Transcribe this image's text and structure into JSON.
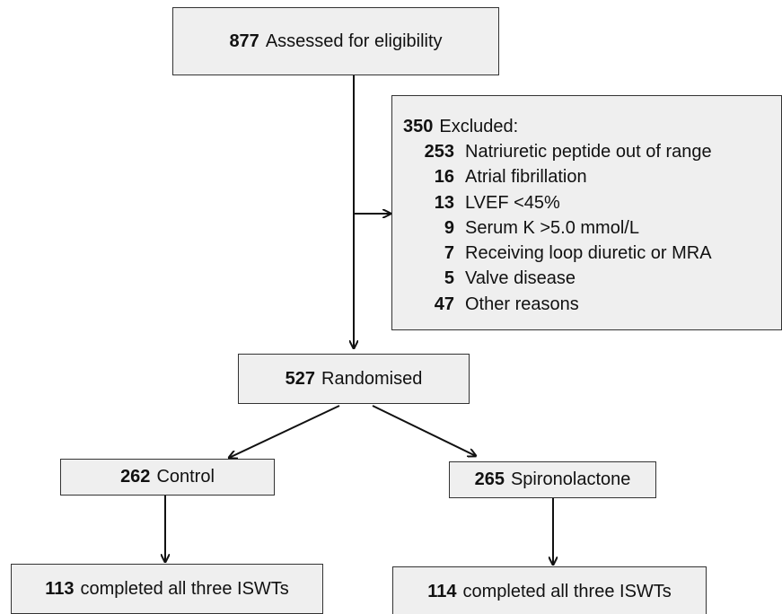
{
  "nodes": {
    "assessed": {
      "count": 877,
      "label": "Assessed for eligibility"
    },
    "excluded": {
      "count": 350,
      "label": "Excluded:",
      "reasons": [
        {
          "count": 253,
          "label": "Natriuretic peptide out of range"
        },
        {
          "count": 16,
          "label": "Atrial fibrillation"
        },
        {
          "count": 13,
          "label": "LVEF <45%"
        },
        {
          "count": 9,
          "label": "Serum K >5.0 mmol/L"
        },
        {
          "count": 7,
          "label": "Receiving loop diuretic or MRA"
        },
        {
          "count": 5,
          "label": "Valve disease"
        },
        {
          "count": 47,
          "label": "Other reasons"
        }
      ]
    },
    "randomised": {
      "count": 527,
      "label": "Randomised"
    },
    "control": {
      "count": 262,
      "label": "Control"
    },
    "spironolactone": {
      "count": 265,
      "label": "Spironolactone"
    },
    "completed_control": {
      "count": 113,
      "label": "completed all three ISWTs"
    },
    "completed_spironolactone": {
      "count": 114,
      "label": "completed all three ISWTs"
    }
  }
}
